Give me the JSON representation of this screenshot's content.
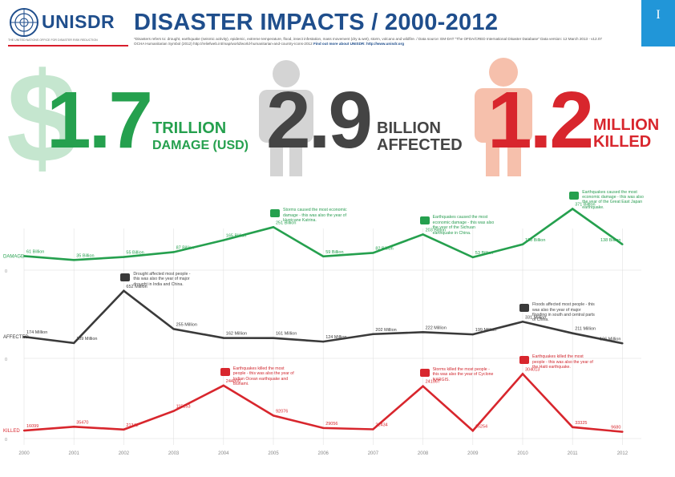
{
  "header": {
    "logo_text": "UNISDR",
    "logo_tagline": "THE UNITED NATIONS OFFICE FOR DISASTER RISK REDUCTION",
    "title": "DISASTER IMPACTS / 2000-2012",
    "note_main": "*Disasters refers to: drought, earthquake (seismic activity), epidemic, extreme temperature, flood, insect infestation, mass movement (dry & wet), storm, volcano and wildfire. / Data source: EM-DAT \"The OFDA/CRED International Disaster Database\" Data version: 12 March 2013 - v12.07",
    "note_map": "OCHA Humanitarian Symbol (2012) http://reliefweb.int/map/world/world-humanitarian-and-country-icons-2012",
    "note_link": "Find out more about UNISDR: http://www.unisdr.org",
    "strip_mark": "I"
  },
  "stats": [
    {
      "number": "1.7",
      "unit_line1": "TRILLION",
      "unit_line2": "DAMAGE (USD)",
      "color": "#25a04e"
    },
    {
      "number": "2.9",
      "unit_line1": "BILLION",
      "unit_line2": "AFFECTED",
      "color": "#444444"
    },
    {
      "number": "1.2",
      "unit_line1": "MILLION",
      "unit_line2": "KILLED",
      "color": "#d8262d"
    }
  ],
  "chart_data": {
    "type": "line",
    "x": [
      "2000",
      "2001",
      "2002",
      "2003",
      "2004",
      "2005",
      "2006",
      "2007",
      "2008",
      "2009",
      "2010",
      "2011",
      "2012"
    ],
    "series": [
      {
        "name": "DAMAGE",
        "color": "#25a04e",
        "values": [
          61,
          35,
          55,
          87,
          165,
          251,
          59,
          82,
          203,
          53,
          138,
          371,
          138
        ],
        "labels": [
          "61 Billion",
          "35 Billion",
          "55 Billion",
          "87 Billion",
          "165 Billion",
          "251 Billion",
          "59 Billion",
          "82 Billion",
          "203 Billion",
          "53 Billion",
          "138 Billion",
          "371 Billion",
          "138 Billion"
        ]
      },
      {
        "name": "AFFECTED",
        "color": "#3a3a3a",
        "values": [
          174,
          109,
          652,
          255,
          162,
          161,
          124,
          202,
          222,
          199,
          331,
          211,
          106
        ],
        "labels": [
          "174 Million",
          "109 Million",
          "652 Million",
          "255 Million",
          "162 Million",
          "161 Million",
          "124 Million",
          "202 Million",
          "222 Million",
          "199 Million",
          "331 Million",
          "211 Million",
          "106 Million"
        ]
      },
      {
        "name": "KILLED",
        "color": "#d8262d",
        "values": [
          16099,
          35470,
          21342,
          115153,
          244800,
          92076,
          29056,
          22434,
          241567,
          15254,
          304013,
          33325,
          9680
        ],
        "labels": [
          "16099",
          "35470",
          "21342",
          "115153",
          "244800",
          "92076",
          "29056",
          "22434",
          "241567",
          "15254",
          "304013",
          "33325",
          "9680"
        ]
      }
    ],
    "events": [
      {
        "series": "DAMAGE",
        "year": "2005",
        "icon": "storm-icon",
        "text": "Storms caused the most economic damage - this was also the year of Hurricane Katrina."
      },
      {
        "series": "DAMAGE",
        "year": "2008",
        "icon": "earthquake-icon",
        "text": "Earthquakes caused the most economic damage - this was also the year of the Sichuan earthquake in China."
      },
      {
        "series": "DAMAGE",
        "year": "2011",
        "icon": "earthquake-icon",
        "text": "Earthquakes caused the most economic damage - this was also the year of the Great East Japan earthquake."
      },
      {
        "series": "AFFECTED",
        "year": "2002",
        "icon": "drought-icon",
        "text": "Drought affected most people - this was also the year of major drought in India and China."
      },
      {
        "series": "AFFECTED",
        "year": "2010",
        "icon": "flood-icon",
        "text": "Floods affected most people - this was also the year of major flooding in south and central parts of China."
      },
      {
        "series": "KILLED",
        "year": "2004",
        "icon": "tsunami-icon",
        "text": "Earthquakes killed the most people - this was also the year of Indian Ocean earthquake and tsunami."
      },
      {
        "series": "KILLED",
        "year": "2008",
        "icon": "storm-icon",
        "text": "Storms killed the most people - this was also the year of Cyclone NARGIS."
      },
      {
        "series": "KILLED",
        "year": "2010",
        "icon": "earthquake-icon",
        "text": "Earthquakes killed the most people - this was also the year of the Haiti earthquake."
      }
    ],
    "row_labels": [
      "DAMAGE",
      "AFFECTED",
      "KILLED"
    ],
    "axis_zero": "0",
    "grid": false
  }
}
